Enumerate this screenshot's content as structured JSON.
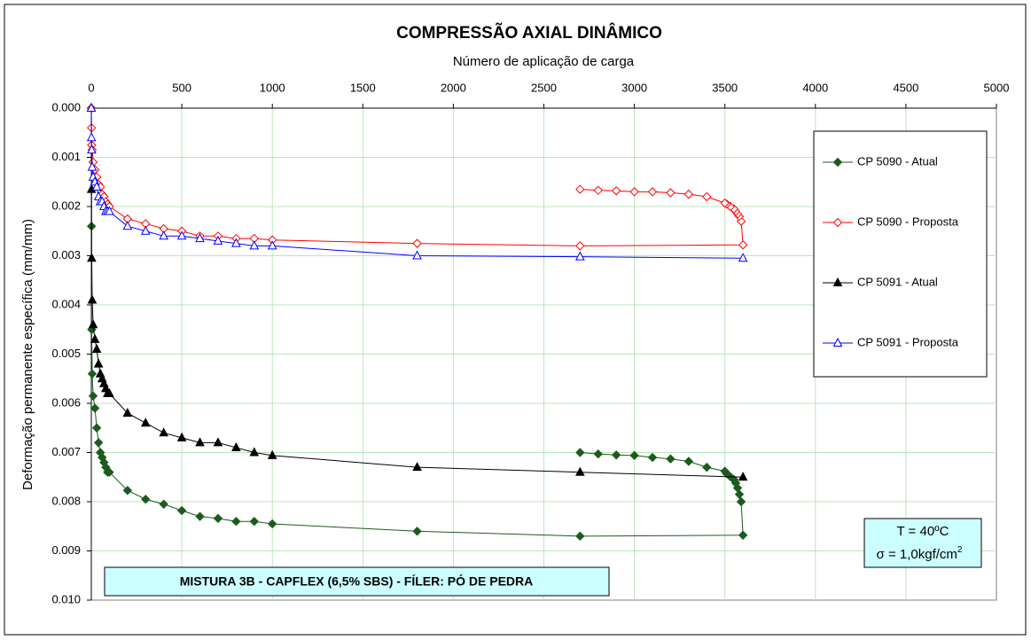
{
  "chart_data": {
    "type": "line",
    "title": "COMPRESSÃO AXIAL DINÂMICO",
    "x_label": "Número de aplicação de carga",
    "y_label": "Deformação permanente específica (mm/mm)",
    "xlim": [
      0,
      5000
    ],
    "xticks": [
      0,
      500,
      1000,
      1500,
      2000,
      2500,
      3000,
      3500,
      4000,
      4500,
      5000
    ],
    "ylim": [
      0,
      0.01
    ],
    "y_inverted": true,
    "yticks": [
      {
        "value": 0,
        "label": "0.000"
      },
      0.001,
      0.002,
      0.003,
      0.004,
      0.005,
      0.006,
      0.007,
      0.008,
      0.009,
      {
        "value": 0.01,
        "label": "0.010"
      }
    ],
    "grid": true,
    "legend": "right",
    "series": [
      {
        "name": "CP 5090 - Atual",
        "color": "#1e5a1e",
        "marker": "diamond",
        "filled": true,
        "x": [
          0,
          1,
          2,
          5,
          10,
          20,
          30,
          40,
          50,
          60,
          70,
          80,
          90,
          100,
          200,
          300,
          400,
          500,
          600,
          700,
          800,
          900,
          1000,
          1800,
          2700,
          3600,
          3590,
          3580,
          3570,
          3560,
          3550,
          3530,
          3510,
          3500,
          3400,
          3300,
          3200,
          3100,
          3000,
          2900,
          2800,
          2700
        ],
        "values": [
          0,
          0.0024,
          0.0045,
          0.0054,
          0.00585,
          0.0061,
          0.0065,
          0.0068,
          0.007,
          0.0071,
          0.0072,
          0.0073,
          0.0074,
          0.0074,
          0.00777,
          0.00795,
          0.00805,
          0.00818,
          0.0083,
          0.00834,
          0.0084,
          0.0084,
          0.00845,
          0.0086,
          0.0087,
          0.00868,
          0.008,
          0.00785,
          0.00772,
          0.00762,
          0.00755,
          0.00749,
          0.00743,
          0.00738,
          0.0073,
          0.00718,
          0.00713,
          0.0071,
          0.00706,
          0.00705,
          0.00703,
          0.007
        ]
      },
      {
        "name": "CP 5090 - Proposta",
        "color": "#ff0000",
        "marker": "diamond",
        "filled": false,
        "x": [
          0,
          1,
          2,
          5,
          10,
          20,
          30,
          40,
          50,
          60,
          70,
          80,
          90,
          100,
          200,
          300,
          400,
          500,
          600,
          700,
          800,
          900,
          1000,
          1800,
          2700,
          3600,
          3590,
          3580,
          3570,
          3560,
          3550,
          3530,
          3510,
          3500,
          3400,
          3300,
          3200,
          3100,
          3000,
          2900,
          2800,
          2700
        ],
        "values": [
          0,
          0.0004,
          0.00075,
          0.00085,
          0.0011,
          0.00125,
          0.0014,
          0.00155,
          0.0016,
          0.00175,
          0.0018,
          0.0019,
          0.00195,
          0.002,
          0.00225,
          0.00235,
          0.00245,
          0.0025,
          0.0026,
          0.0026,
          0.00265,
          0.00265,
          0.00268,
          0.00275,
          0.0028,
          0.00278,
          0.0023,
          0.0022,
          0.00215,
          0.0021,
          0.00205,
          0.002,
          0.00195,
          0.00193,
          0.0018,
          0.00175,
          0.00172,
          0.0017,
          0.0017,
          0.00168,
          0.00167,
          0.00165
        ]
      },
      {
        "name": "CP 5091 - Atual",
        "color": "#000000",
        "marker": "triangle",
        "filled": true,
        "x": [
          0,
          1,
          2,
          5,
          10,
          20,
          30,
          40,
          50,
          60,
          70,
          80,
          90,
          100,
          200,
          300,
          400,
          500,
          600,
          700,
          800,
          900,
          1000,
          1800,
          2700,
          3600
        ],
        "values": [
          0,
          0.00165,
          0.00305,
          0.0039,
          0.0044,
          0.0047,
          0.0049,
          0.0052,
          0.0054,
          0.0055,
          0.0056,
          0.0057,
          0.0058,
          0.0058,
          0.0062,
          0.0064,
          0.0066,
          0.0067,
          0.0068,
          0.0068,
          0.0069,
          0.007,
          0.00706,
          0.0073,
          0.0074,
          0.0075
        ]
      },
      {
        "name": "CP 5091 - Proposta",
        "color": "#0000ff",
        "marker": "triangle",
        "filled": false,
        "x": [
          0,
          1,
          2,
          5,
          10,
          20,
          30,
          40,
          50,
          60,
          70,
          80,
          90,
          100,
          200,
          300,
          400,
          500,
          600,
          700,
          800,
          900,
          1000,
          1800,
          2700,
          3600
        ],
        "values": [
          0,
          0.0006,
          0.00085,
          0.0012,
          0.0014,
          0.0015,
          0.0016,
          0.0018,
          0.0019,
          0.0019,
          0.002,
          0.0021,
          0.0021,
          0.0021,
          0.0024,
          0.0025,
          0.0026,
          0.0026,
          0.00265,
          0.0027,
          0.00275,
          0.0028,
          0.0028,
          0.003,
          0.00302,
          0.00305
        ]
      }
    ],
    "annotations": {
      "mixture": "MISTURA 3B - CAPFLEX (6,5% SBS) - FÍLER: PÓ DE PEDRA",
      "temperature": "T = 40ºC",
      "stress": "σ = 1,0kgf/cm",
      "stress_sup": "2"
    }
  }
}
